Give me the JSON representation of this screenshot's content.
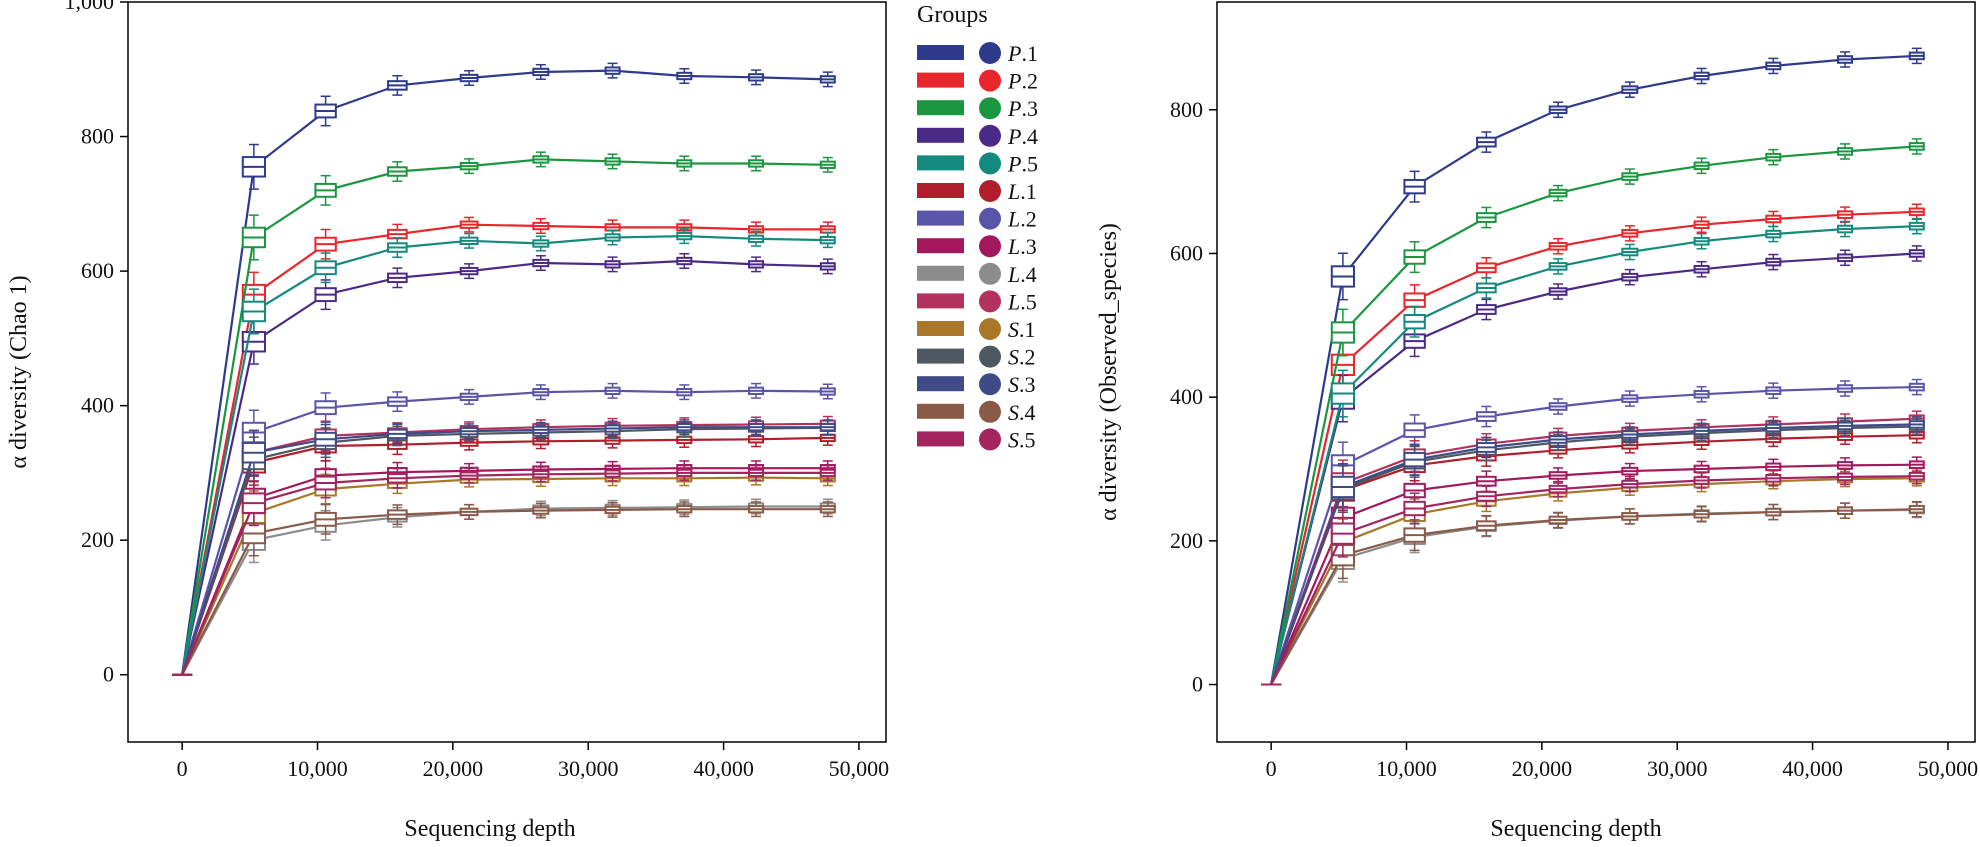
{
  "legend": {
    "title": "Groups",
    "entries": [
      {
        "name": "P.1",
        "prefix": "P",
        "suffix": ".1",
        "color": "#2e3a8c"
      },
      {
        "name": "P.2",
        "prefix": "P",
        "suffix": ".2",
        "color": "#e8262b"
      },
      {
        "name": "P.3",
        "prefix": "P",
        "suffix": ".3",
        "color": "#1a9641"
      },
      {
        "name": "P.4",
        "prefix": "P",
        "suffix": ".4",
        "color": "#4b2a87"
      },
      {
        "name": "P.5",
        "prefix": "P",
        "suffix": ".5",
        "color": "#14897e"
      },
      {
        "name": "L.1",
        "prefix": "L",
        "suffix": ".1",
        "color": "#b01d2b"
      },
      {
        "name": "L.2",
        "prefix": "L",
        "suffix": ".2",
        "color": "#5a55a8"
      },
      {
        "name": "L.3",
        "prefix": "L",
        "suffix": ".3",
        "color": "#a3175f"
      },
      {
        "name": "L.4",
        "prefix": "L",
        "suffix": ".4",
        "color": "#8c8c8c"
      },
      {
        "name": "L.5",
        "prefix": "L",
        "suffix": ".5",
        "color": "#b3325d"
      },
      {
        "name": "S.1",
        "prefix": "S",
        "suffix": ".1",
        "color": "#a8772a"
      },
      {
        "name": "S.2",
        "prefix": "S",
        "suffix": ".2",
        "color": "#4f5760"
      },
      {
        "name": "S.3",
        "prefix": "S",
        "suffix": ".3",
        "color": "#3f4b87"
      },
      {
        "name": "S.4",
        "prefix": "S",
        "suffix": ".4",
        "color": "#8a5a48"
      },
      {
        "name": "S.5",
        "prefix": "S",
        "suffix": ".5",
        "color": "#a3245e"
      }
    ]
  },
  "chart_data": [
    {
      "type": "line",
      "title": "",
      "xlabel": "Sequencing depth",
      "ylabel": "α diversity (Chao 1)",
      "xlim": [
        -4000,
        52000
      ],
      "ylim": [
        -100,
        1000
      ],
      "xticks": [
        0,
        10000,
        20000,
        30000,
        40000,
        50000
      ],
      "xtick_labels": [
        "0",
        "10,000",
        "20,000",
        "30,000",
        "40,000",
        "50,000"
      ],
      "yticks": [
        0,
        200,
        400,
        600,
        800,
        1000
      ],
      "ytick_labels": [
        "0",
        "200",
        "400",
        "600",
        "800",
        "1,000"
      ],
      "x": [
        0,
        5300,
        10600,
        15900,
        21200,
        26500,
        31800,
        37100,
        42400,
        47700
      ],
      "series": [
        {
          "name": "P.1",
          "values": [
            0,
            755,
            838,
            876,
            887,
            896,
            898,
            890,
            888,
            885
          ]
        },
        {
          "name": "P.2",
          "values": [
            0,
            565,
            640,
            655,
            669,
            667,
            665,
            665,
            662,
            662
          ]
        },
        {
          "name": "P.3",
          "values": [
            0,
            650,
            720,
            748,
            756,
            766,
            763,
            760,
            760,
            758
          ]
        },
        {
          "name": "P.4",
          "values": [
            0,
            495,
            565,
            590,
            600,
            612,
            610,
            615,
            610,
            607
          ]
        },
        {
          "name": "P.5",
          "values": [
            0,
            540,
            605,
            635,
            645,
            641,
            650,
            652,
            648,
            646
          ]
        },
        {
          "name": "L.1",
          "values": [
            0,
            315,
            340,
            342,
            345,
            347,
            348,
            349,
            350,
            352
          ]
        },
        {
          "name": "L.2",
          "values": [
            0,
            360,
            397,
            406,
            413,
            420,
            422,
            420,
            422,
            421
          ]
        },
        {
          "name": "L.3",
          "values": [
            0,
            262,
            296,
            301,
            303,
            305,
            306,
            307,
            307,
            307
          ]
        },
        {
          "name": "L.4",
          "values": [
            0,
            200,
            222,
            234,
            242,
            247,
            248,
            249,
            250,
            250
          ]
        },
        {
          "name": "L.5",
          "values": [
            0,
            330,
            355,
            360,
            365,
            368,
            370,
            371,
            372,
            373
          ]
        },
        {
          "name": "S.1",
          "values": [
            0,
            240,
            276,
            284,
            290,
            291,
            292,
            292,
            293,
            292
          ]
        },
        {
          "name": "S.2",
          "values": [
            0,
            320,
            345,
            355,
            358,
            360,
            362,
            365,
            366,
            367
          ]
        },
        {
          "name": "S.3",
          "values": [
            0,
            330,
            350,
            358,
            362,
            364,
            366,
            368,
            368,
            368
          ]
        },
        {
          "name": "S.4",
          "values": [
            0,
            210,
            231,
            238,
            242,
            244,
            245,
            246,
            246,
            246
          ]
        },
        {
          "name": "S.5",
          "values": [
            0,
            255,
            285,
            292,
            296,
            298,
            299,
            300,
            300,
            300
          ]
        }
      ]
    },
    {
      "type": "line",
      "title": "",
      "xlabel": "Sequencing depth",
      "ylabel": "α diversity (Observed_species)",
      "xlim": [
        -4000,
        52000
      ],
      "ylim": [
        -80,
        950
      ],
      "xticks": [
        0,
        10000,
        20000,
        30000,
        40000,
        50000
      ],
      "xtick_labels": [
        "0",
        "10,000",
        "20,000",
        "30,000",
        "40,000",
        "50,000"
      ],
      "yticks": [
        0,
        200,
        400,
        600,
        800
      ],
      "ytick_labels": [
        "0",
        "200",
        "400",
        "600",
        "800"
      ],
      "x": [
        0,
        5300,
        10600,
        15900,
        21200,
        26500,
        31800,
        37100,
        42400,
        47700
      ],
      "series": [
        {
          "name": "P.1",
          "values": [
            0,
            568,
            693,
            755,
            800,
            828,
            847,
            861,
            870,
            875
          ]
        },
        {
          "name": "P.2",
          "values": [
            0,
            445,
            535,
            580,
            610,
            628,
            640,
            648,
            654,
            658
          ]
        },
        {
          "name": "P.3",
          "values": [
            0,
            490,
            595,
            650,
            684,
            707,
            722,
            734,
            742,
            749
          ]
        },
        {
          "name": "P.4",
          "values": [
            0,
            398,
            478,
            522,
            547,
            567,
            578,
            588,
            594,
            600
          ]
        },
        {
          "name": "P.5",
          "values": [
            0,
            405,
            505,
            552,
            582,
            602,
            617,
            627,
            634,
            638
          ]
        },
        {
          "name": "L.1",
          "values": [
            0,
            270,
            305,
            318,
            326,
            333,
            338,
            342,
            345,
            347
          ]
        },
        {
          "name": "L.2",
          "values": [
            0,
            305,
            354,
            373,
            387,
            398,
            404,
            409,
            412,
            414
          ]
        },
        {
          "name": "L.3",
          "values": [
            0,
            232,
            270,
            283,
            291,
            297,
            300,
            303,
            305,
            306
          ]
        },
        {
          "name": "L.4",
          "values": [
            0,
            175,
            205,
            220,
            228,
            234,
            238,
            240,
            242,
            243
          ]
        },
        {
          "name": "L.5",
          "values": [
            0,
            280,
            318,
            335,
            346,
            353,
            358,
            362,
            366,
            370
          ]
        },
        {
          "name": "S.1",
          "values": [
            0,
            198,
            237,
            255,
            266,
            274,
            279,
            283,
            286,
            287
          ]
        },
        {
          "name": "S.2",
          "values": [
            0,
            272,
            310,
            326,
            337,
            345,
            350,
            354,
            357,
            359
          ]
        },
        {
          "name": "S.3",
          "values": [
            0,
            275,
            313,
            330,
            341,
            348,
            353,
            357,
            360,
            362
          ]
        },
        {
          "name": "S.4",
          "values": [
            0,
            180,
            208,
            221,
            229,
            234,
            237,
            240,
            242,
            244
          ]
        },
        {
          "name": "S.5",
          "values": [
            0,
            210,
            245,
            262,
            272,
            279,
            284,
            287,
            289,
            290
          ]
        }
      ]
    }
  ]
}
